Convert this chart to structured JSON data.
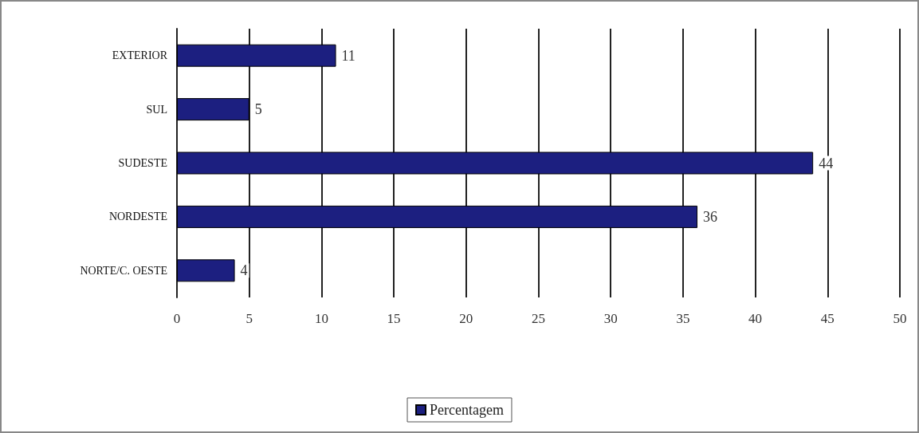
{
  "chart_data": {
    "type": "bar",
    "orientation": "horizontal",
    "categories": [
      "EXTERIOR",
      "SUL",
      "SUDESTE",
      "NORDESTE",
      "NORTE/C. OESTE"
    ],
    "series": [
      {
        "name": "Percentagem",
        "color": "#1c1f80",
        "values": [
          11,
          5,
          44,
          36,
          4
        ]
      }
    ],
    "xlim": [
      0,
      50
    ],
    "xticks": [
      0,
      5,
      10,
      15,
      20,
      25,
      30,
      35,
      40,
      45,
      50
    ],
    "grid": "x",
    "legend": "bottom",
    "data_labels": true
  }
}
